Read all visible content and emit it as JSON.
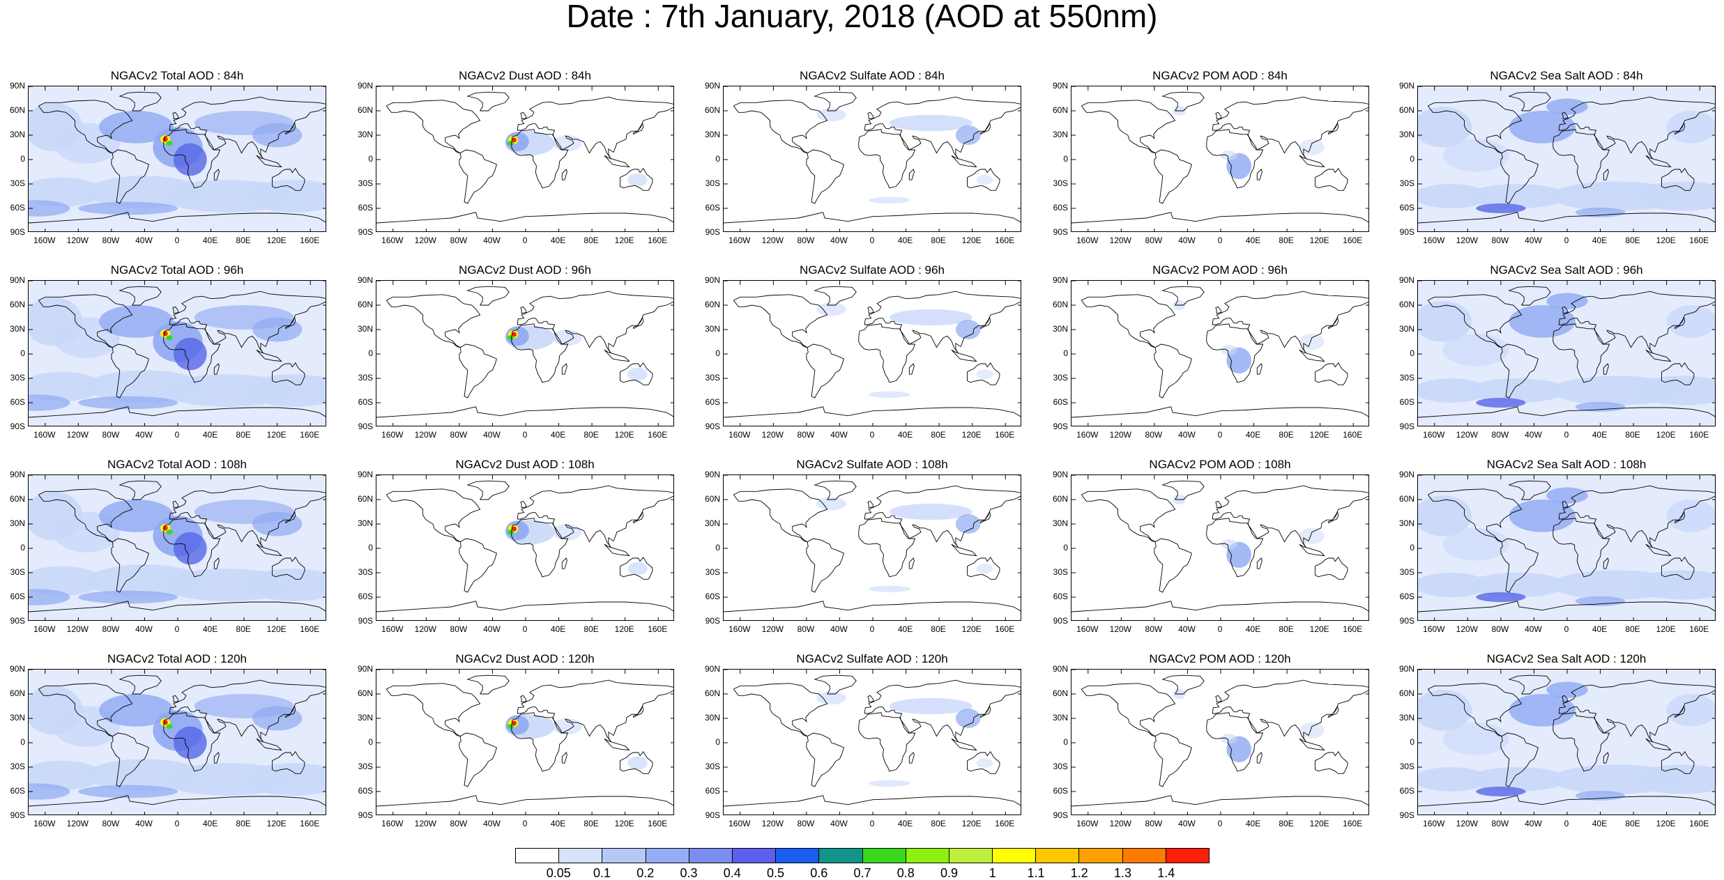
{
  "title": "Date : 7th January, 2018 (AOD at 550nm)",
  "lat_labels": [
    "90N",
    "60N",
    "30N",
    "0",
    "30S",
    "60S",
    "90S"
  ],
  "lon_labels": [
    "160W",
    "120W",
    "80W",
    "40W",
    "0",
    "40E",
    "80E",
    "120E",
    "160E"
  ],
  "panels": [
    [
      {
        "title": "NGACv2 Total AOD : 84h",
        "species": "total"
      },
      {
        "title": "NGACv2 Dust AOD : 84h",
        "species": "dust"
      },
      {
        "title": "NGACv2 Sulfate AOD : 84h",
        "species": "sulfate"
      },
      {
        "title": "NGACv2 POM AOD : 84h",
        "species": "pom"
      },
      {
        "title": "NGACv2 Sea Salt AOD : 84h",
        "species": "seasalt"
      }
    ],
    [
      {
        "title": "NGACv2 Total AOD : 96h",
        "species": "total"
      },
      {
        "title": "NGACv2 Dust AOD : 96h",
        "species": "dust"
      },
      {
        "title": "NGACv2 Sulfate AOD : 96h",
        "species": "sulfate"
      },
      {
        "title": "NGACv2 POM AOD : 96h",
        "species": "pom"
      },
      {
        "title": "NGACv2 Sea Salt AOD : 96h",
        "species": "seasalt"
      }
    ],
    [
      {
        "title": "NGACv2 Total AOD : 108h",
        "species": "total"
      },
      {
        "title": "NGACv2 Dust AOD : 108h",
        "species": "dust"
      },
      {
        "title": "NGACv2 Sulfate AOD : 108h",
        "species": "sulfate"
      },
      {
        "title": "NGACv2 POM AOD : 108h",
        "species": "pom"
      },
      {
        "title": "NGACv2 Sea Salt AOD : 108h",
        "species": "seasalt"
      }
    ],
    [
      {
        "title": "NGACv2 Total AOD : 120h",
        "species": "total"
      },
      {
        "title": "NGACv2 Dust AOD : 120h",
        "species": "dust"
      },
      {
        "title": "NGACv2 Sulfate AOD : 120h",
        "species": "sulfate"
      },
      {
        "title": "NGACv2 POM AOD : 120h",
        "species": "pom"
      },
      {
        "title": "NGACv2 Sea Salt  AOD : 120h",
        "species": "seasalt"
      }
    ]
  ],
  "colorbar": {
    "levels": [
      "0.05",
      "0.1",
      "0.2",
      "0.3",
      "0.4",
      "0.5",
      "0.6",
      "0.7",
      "0.8",
      "0.9",
      "1",
      "1.1",
      "1.2",
      "1.3",
      "1.4"
    ],
    "colors": [
      "#ffffff",
      "#d7e3fb",
      "#b5c9f7",
      "#93aef4",
      "#7b8ef0",
      "#5d60ec",
      "#1a5ef0",
      "#12948a",
      "#3cd81e",
      "#8df00e",
      "#bdef3c",
      "#ffff00",
      "#ffc800",
      "#ffa000",
      "#ff7a00",
      "#ff1e0a"
    ]
  },
  "map_colors": {
    "land_outline": "#000000",
    "low_aod": "#c9d8fa",
    "mid_aod": "#8fa9f2",
    "high_aod": "#5666e6",
    "dust_core": "#ffff00",
    "dust_peak": "#ff1e0a",
    "dust_green": "#3cd81e"
  }
}
